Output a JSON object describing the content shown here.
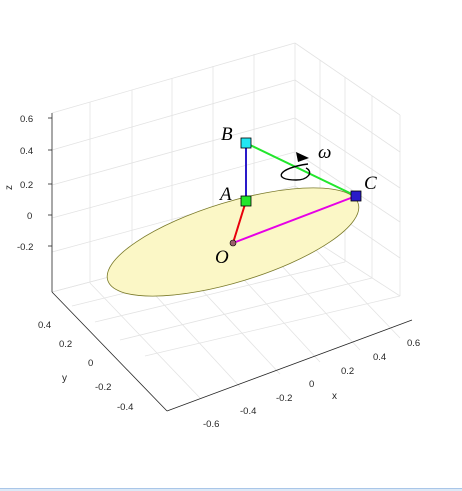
{
  "axes": {
    "x_label": "x",
    "y_label": "y",
    "z_label": "z",
    "x_ticks": [
      "-0.6",
      "-0.4",
      "-0.2",
      "0",
      "0.2",
      "0.4",
      "0.6"
    ],
    "y_ticks": [
      "-0.4",
      "-0.2",
      "0",
      "0.2",
      "0.4"
    ],
    "z_ticks": [
      "-0.2",
      "0",
      "0.2",
      "0.4",
      "0.6"
    ]
  },
  "points": {
    "A": "A",
    "B": "B",
    "C": "C",
    "O": "O"
  },
  "omega_label": "ω",
  "colors": {
    "ellipse_fill": "#fbf7c6",
    "OA": "#e8000b",
    "AB": "#2a1ac9",
    "BC": "#22e62c",
    "OC": "#e600e6",
    "A_marker": "#22e62c",
    "B_marker": "#22e6f2",
    "C_marker": "#2a1ac9",
    "O_marker": "#9b5f6a"
  }
}
